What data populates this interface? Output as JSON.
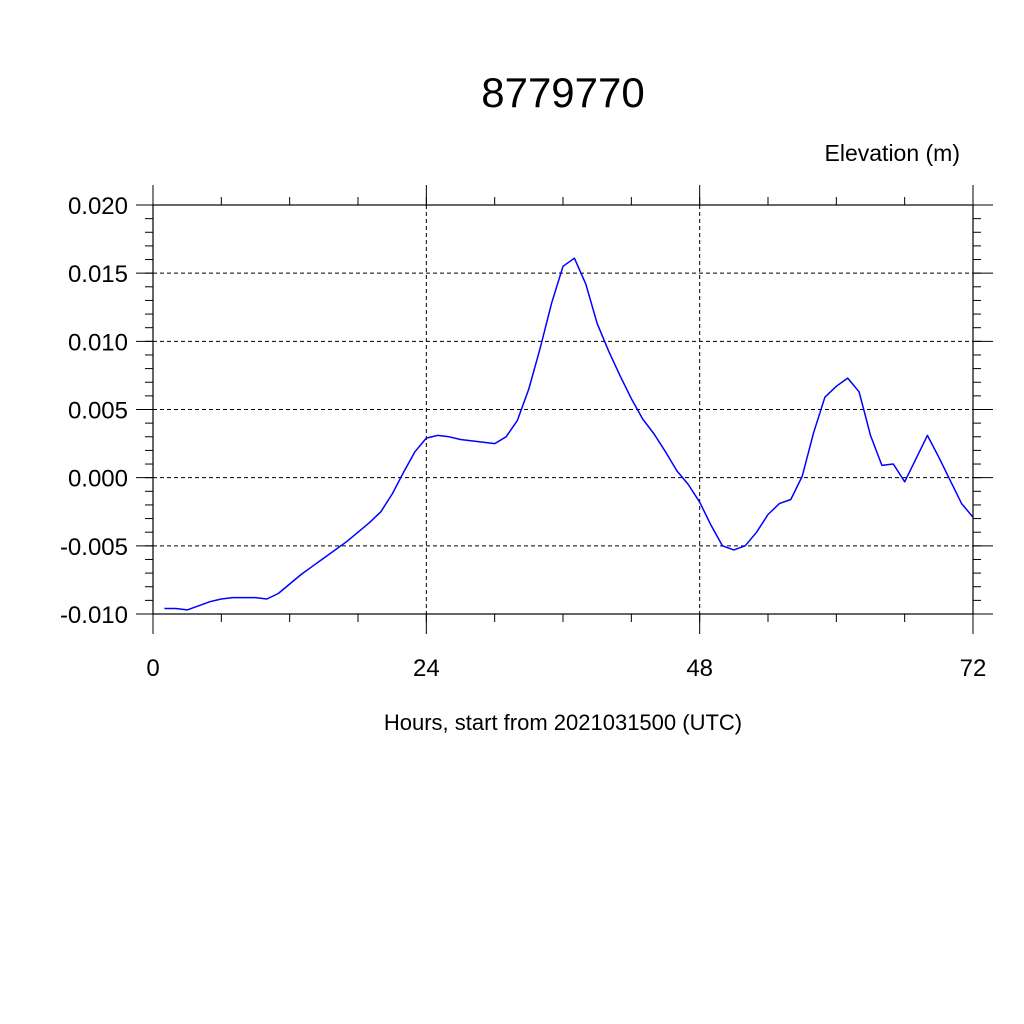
{
  "chart_data": {
    "type": "line",
    "title": "8779770",
    "ylabel": "Elevation (m)",
    "xlabel": "Hours, start from 2021031500 (UTC)",
    "xlim": [
      0,
      72
    ],
    "ylim": [
      -0.01,
      0.02
    ],
    "xticks": [
      0,
      24,
      48,
      72
    ],
    "xtick_labels": [
      "0",
      "24",
      "48",
      "72"
    ],
    "yticks": [
      -0.01,
      -0.005,
      0.0,
      0.005,
      0.01,
      0.015,
      0.02
    ],
    "ytick_labels": [
      "-0.010",
      "-0.005",
      "0.000",
      "0.005",
      "0.010",
      "0.015",
      "0.020"
    ],
    "grid": true,
    "series": [
      {
        "color": "#0000ff",
        "x": [
          1,
          2,
          3,
          4,
          5,
          6,
          7,
          8,
          9,
          10,
          11,
          12,
          13,
          14,
          15,
          16,
          17,
          18,
          19,
          20,
          21,
          22,
          23,
          24,
          25,
          26,
          27,
          28,
          29,
          30,
          31,
          32,
          33,
          34,
          35,
          36,
          37,
          38,
          39,
          40,
          41,
          42,
          43,
          44,
          45,
          46,
          47,
          48,
          49,
          50,
          51,
          52,
          53,
          54,
          55,
          56,
          57,
          58,
          59,
          60,
          61,
          62,
          63,
          64,
          65,
          66,
          67,
          68,
          69,
          70,
          71,
          72
        ],
        "y": [
          -0.0096,
          -0.0096,
          -0.0097,
          -0.0094,
          -0.0091,
          -0.0089,
          -0.0088,
          -0.0088,
          -0.0088,
          -0.0089,
          -0.0085,
          -0.0078,
          -0.0071,
          -0.0065,
          -0.0059,
          -0.0053,
          -0.0047,
          -0.004,
          -0.0033,
          -0.0025,
          -0.0012,
          0.0004,
          0.0019,
          0.0029,
          0.0031,
          0.003,
          0.0028,
          0.0027,
          0.0026,
          0.0025,
          0.003,
          0.0042,
          0.0065,
          0.0095,
          0.0128,
          0.0155,
          0.0161,
          0.0142,
          0.0113,
          0.0093,
          0.0075,
          0.0058,
          0.0043,
          0.0032,
          0.0019,
          0.0005,
          -0.0005,
          -0.0018,
          -0.0035,
          -0.005,
          -0.0053,
          -0.005,
          -0.004,
          -0.0027,
          -0.0019,
          -0.0016,
          0.0001,
          0.0033,
          0.0059,
          0.0067,
          0.0073,
          0.0063,
          0.0031,
          0.0009,
          0.001,
          -0.0003,
          0.0014,
          0.0031,
          0.0015,
          -0.0002,
          -0.0019,
          -0.0029
        ]
      }
    ]
  }
}
